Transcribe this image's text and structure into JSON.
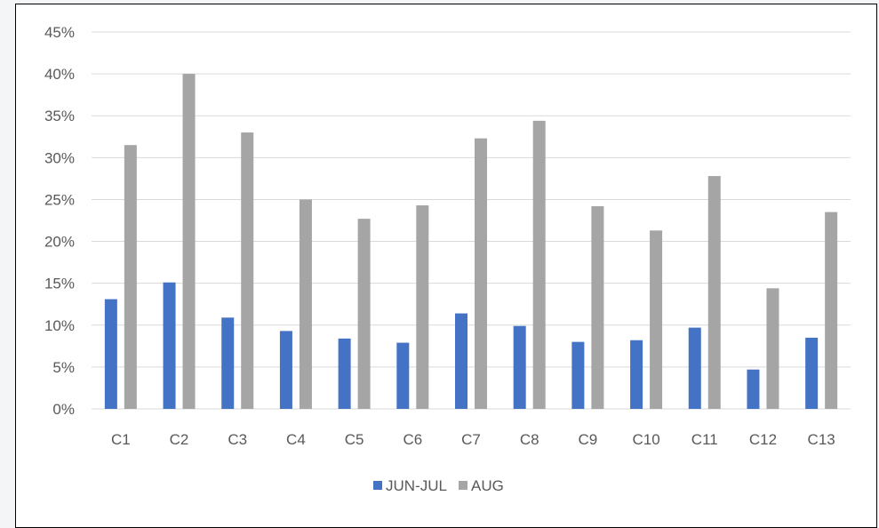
{
  "chart_data": {
    "type": "bar",
    "title": "",
    "xlabel": "",
    "ylabel": "",
    "categories": [
      "C1",
      "C2",
      "C3",
      "C4",
      "C5",
      "C6",
      "C7",
      "C8",
      "C9",
      "C10",
      "C11",
      "C12",
      "C13"
    ],
    "series": [
      {
        "name": "JUN-JUL",
        "color": "#4472c4",
        "values": [
          13.1,
          15.1,
          10.9,
          9.3,
          8.4,
          7.9,
          11.4,
          9.9,
          8.0,
          8.2,
          9.7,
          4.7,
          8.5
        ]
      },
      {
        "name": "AUG",
        "color": "#a5a5a5",
        "values": [
          31.5,
          40.0,
          33.0,
          25.0,
          22.7,
          24.3,
          32.3,
          34.4,
          24.2,
          21.3,
          27.8,
          14.4,
          23.5
        ]
      }
    ],
    "ylim": [
      0,
      45
    ],
    "yticks": [
      "0%",
      "5%",
      "10%",
      "15%",
      "20%",
      "25%",
      "30%",
      "35%",
      "40%",
      "45%"
    ],
    "ytick_values": [
      0,
      5,
      10,
      15,
      20,
      25,
      30,
      35,
      40,
      45
    ],
    "grid": true,
    "gridline_color": "#d9d9d9",
    "legend": "bottom"
  }
}
